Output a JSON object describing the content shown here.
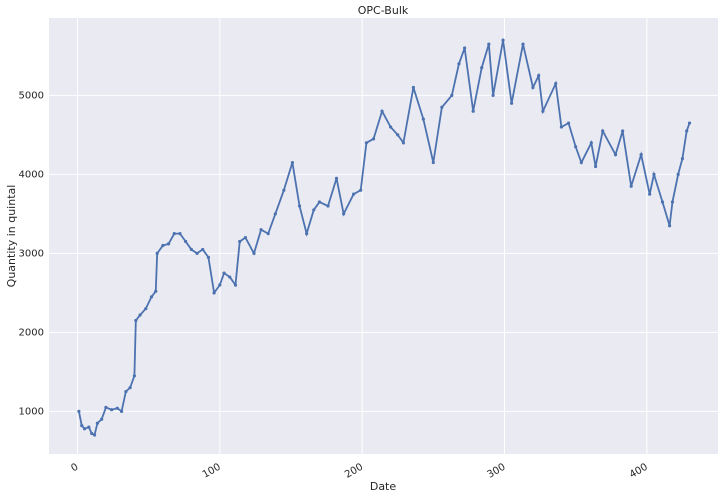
{
  "chart_data": {
    "type": "line",
    "title": "OPC-Bulk",
    "x_label": "Date",
    "y_label": "Quantity in quintal",
    "x": [
      1,
      3,
      5,
      8,
      10,
      12,
      14,
      17,
      20,
      24,
      28,
      31,
      34,
      37,
      40,
      41,
      44,
      48,
      52,
      55,
      56,
      60,
      64,
      68,
      72,
      76,
      80,
      84,
      88,
      92,
      96,
      100,
      103,
      107,
      111,
      114,
      118,
      124,
      129,
      134,
      139,
      145,
      151,
      156,
      161,
      166,
      170,
      176,
      182,
      187,
      194,
      199,
      203,
      208,
      214,
      220,
      225,
      229,
      236,
      243,
      250,
      256,
      263,
      268,
      272,
      278,
      284,
      289,
      292,
      299,
      305,
      313,
      320,
      324,
      327,
      336,
      340,
      345,
      350,
      354,
      361,
      364,
      369,
      378,
      383,
      389,
      396,
      402,
      405,
      411,
      416,
      418,
      422,
      425,
      428,
      430
    ],
    "series": [
      {
        "name": "OPC-Bulk",
        "color": "#4c72b0",
        "values": [
          1000,
          820,
          780,
          800,
          720,
          700,
          850,
          900,
          1050,
          1020,
          1040,
          1000,
          1250,
          1300,
          1450,
          2150,
          2220,
          2300,
          2450,
          2520,
          3000,
          3100,
          3120,
          3250,
          3250,
          3150,
          3050,
          3000,
          3050,
          2950,
          2500,
          2600,
          2750,
          2700,
          2600,
          3150,
          3200,
          3000,
          3300,
          3250,
          3500,
          3800,
          4150,
          3600,
          3250,
          3550,
          3650,
          3600,
          3950,
          3500,
          3750,
          3800,
          4400,
          4450,
          4800,
          4600,
          4500,
          4400,
          5100,
          4700,
          4150,
          4850,
          5000,
          5400,
          5600,
          4800,
          5350,
          5650,
          5000,
          5700,
          4900,
          5650,
          5100,
          5250,
          4800,
          5150,
          4600,
          4650,
          4350,
          4150,
          4400,
          4100,
          4550,
          4250,
          4550,
          3850,
          4250,
          3750,
          4000,
          3650,
          3350,
          3650,
          4000,
          4200,
          4550,
          4650
        ]
      }
    ],
    "xlim": [
      -20,
      450
    ],
    "ylim": [
      460,
      5980
    ],
    "xticks": [
      0,
      100,
      200,
      300,
      400
    ],
    "yticks": [
      1000,
      2000,
      3000,
      4000,
      5000
    ],
    "grid": true
  }
}
